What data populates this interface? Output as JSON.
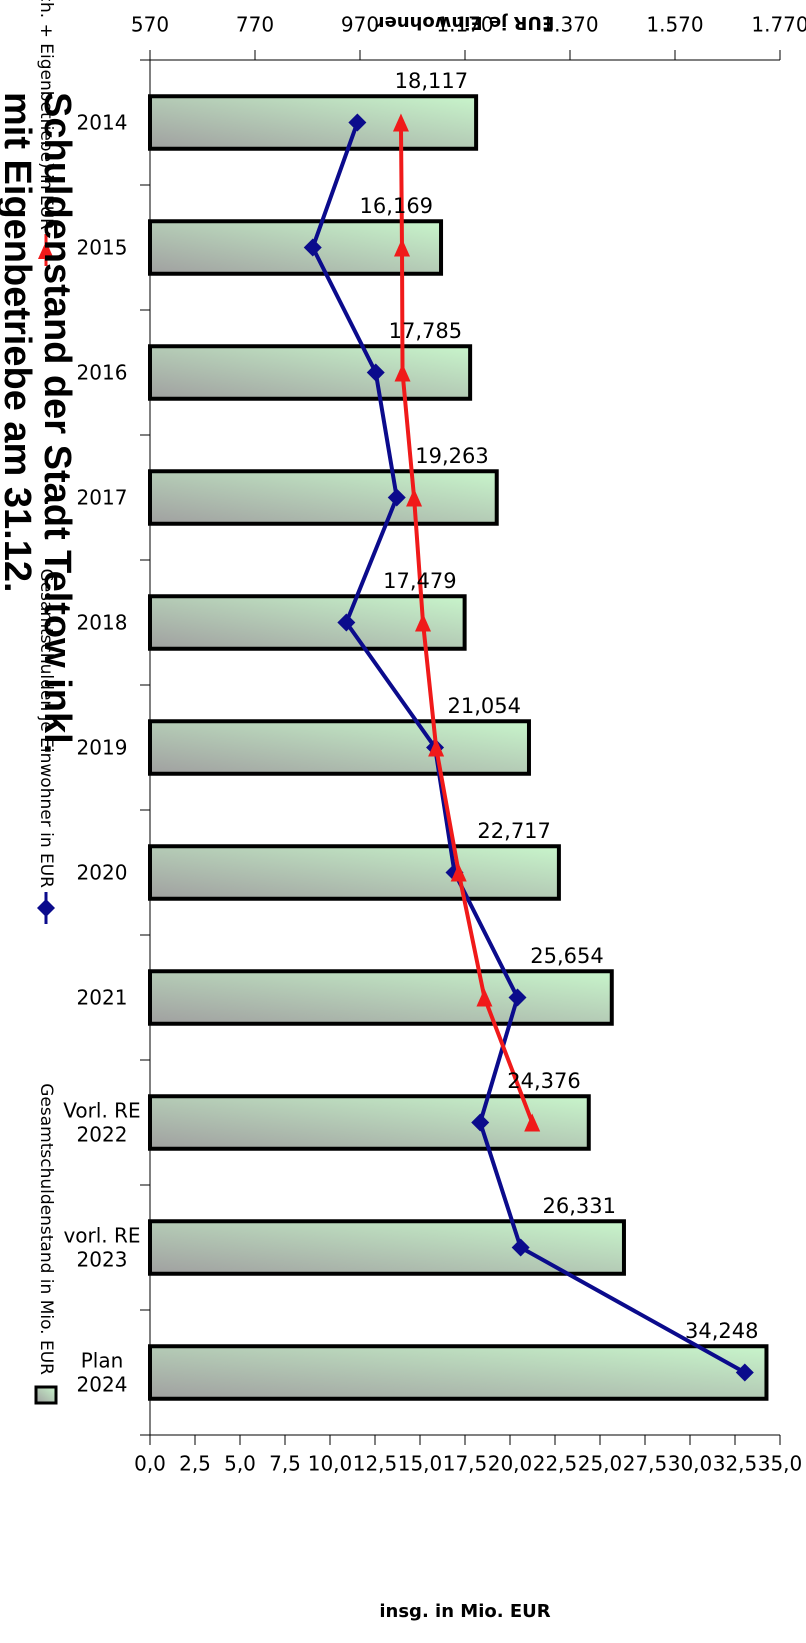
{
  "title": {
    "line1": "Schuldenstand der Stadt Teltow inkl.",
    "line2": "mit Eigenbetriebe am 31.12."
  },
  "chart_data": {
    "type": "bar",
    "categories": [
      [
        "2014"
      ],
      [
        "2015"
      ],
      [
        "2016"
      ],
      [
        "2017"
      ],
      [
        "2018"
      ],
      [
        "2019"
      ],
      [
        "2020"
      ],
      [
        "2021"
      ],
      [
        "Vorl. RE",
        "2022"
      ],
      [
        "vorl. RE",
        "2023"
      ],
      [
        "Plan",
        "2024"
      ]
    ],
    "y_left": {
      "label": "insg. in Mio. EUR",
      "range": [
        0,
        35
      ],
      "ticks": [
        "0,0",
        "2,5",
        "5,0",
        "7,5",
        "10,0",
        "12,5",
        "15,0",
        "17,5",
        "20,0",
        "22,5",
        "25,0",
        "27,5",
        "30,0",
        "32,5",
        "35,0"
      ]
    },
    "y_right": {
      "label": "EUR je Einwohner",
      "range": [
        570,
        1770
      ],
      "ticks": [
        "570",
        "770",
        "970",
        "1.170",
        "1.370",
        "1.570",
        "1.770"
      ]
    },
    "series": [
      {
        "name": "Gesamtschuldenstand in Mio. EUR",
        "kind": "bar",
        "axis": "left",
        "values": [
          18.117,
          16.169,
          17.785,
          19.263,
          17.479,
          21.054,
          22.717,
          25.654,
          24.376,
          26.331,
          34.248
        ],
        "labels": [
          "18,117",
          "16,169",
          "17,785",
          "19,263",
          "17,479",
          "21,054",
          "22,717",
          "25,654",
          "24,376",
          "26,331",
          "34,248"
        ]
      },
      {
        "name": "Gesamtschulden je Einwohner in EUR",
        "kind": "line",
        "axis": "right",
        "marker": "diamond",
        "values": [
          965,
          880,
          1000,
          1040,
          944,
          1113,
          1150,
          1270,
          1199,
          1276,
          1703
        ]
      },
      {
        "name": "Landesdurchschnitt je Einwohner (Gemeindesch. + Eigenbetriebe) in EUR",
        "kind": "line",
        "axis": "right",
        "marker": "triangle",
        "values": [
          1048,
          1050,
          1051,
          1073,
          1090,
          1115,
          1158,
          1207,
          1298,
          null,
          null
        ]
      }
    ],
    "colors": {
      "bar_fill_start": "#c8f5cb",
      "bar_fill_end": "#a0a0a0",
      "line1": "#0b0b8c",
      "line2": "#f01a1a"
    },
    "legend_position": "bottom",
    "grid": false
  }
}
